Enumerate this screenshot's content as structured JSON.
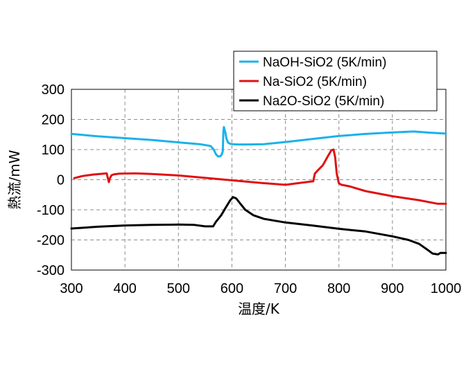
{
  "chart_data": {
    "type": "line",
    "title": "",
    "xlabel": "温度/K",
    "ylabel": "熱流/mW",
    "xlim": [
      300,
      1000
    ],
    "ylim": [
      -300,
      300
    ],
    "xticks": [
      300,
      400,
      500,
      600,
      700,
      800,
      900,
      1000
    ],
    "yticks": [
      -300,
      -200,
      -100,
      0,
      100,
      200,
      300
    ],
    "grid": true,
    "legend_position": "top-right",
    "series": [
      {
        "name": "NaOH-SiO2 (5K/min)",
        "color": "#1ab2e8",
        "x": [
          300,
          350,
          400,
          450,
          500,
          540,
          560,
          566,
          570,
          574,
          578,
          581,
          583,
          584,
          585,
          586,
          588,
          590,
          593,
          597,
          602,
          610,
          630,
          660,
          700,
          750,
          800,
          850,
          900,
          940,
          970,
          1000
        ],
        "y": [
          152,
          144,
          138,
          132,
          124,
          118,
          112,
          100,
          85,
          77,
          78,
          84,
          95,
          160,
          175,
          168,
          155,
          135,
          123,
          119,
          118,
          117,
          117,
          118,
          125,
          135,
          145,
          152,
          157,
          160,
          156,
          153
        ]
      },
      {
        "name": "Na-SiO2 (5K/min)",
        "color": "#e01010",
        "x": [
          305,
          320,
          340,
          366,
          368,
          370,
          372,
          375,
          380,
          390,
          420,
          450,
          500,
          550,
          600,
          650,
          700,
          730,
          752,
          755,
          760,
          770,
          780,
          786,
          790,
          793,
          796,
          800,
          805,
          820,
          850,
          900,
          950,
          985,
          1000
        ],
        "y": [
          5,
          12,
          17,
          21,
          5,
          -8,
          5,
          15,
          18,
          20,
          21,
          19,
          14,
          6,
          -2,
          -10,
          -17,
          -10,
          -5,
          20,
          30,
          48,
          80,
          98,
          100,
          75,
          20,
          -12,
          -17,
          -22,
          -38,
          -55,
          -68,
          -80,
          -80
        ]
      },
      {
        "name": "Na2O-SiO2 (5K/min)",
        "color": "#000000",
        "x": [
          300,
          350,
          400,
          450,
          500,
          530,
          550,
          565,
          570,
          580,
          590,
          597,
          602,
          608,
          615,
          625,
          640,
          660,
          700,
          750,
          800,
          850,
          900,
          930,
          950,
          965,
          975,
          985,
          990,
          1000
        ],
        "y": [
          -162,
          -156,
          -152,
          -150,
          -149,
          -150,
          -155,
          -155,
          -140,
          -118,
          -88,
          -68,
          -58,
          -62,
          -78,
          -100,
          -118,
          -130,
          -142,
          -152,
          -163,
          -172,
          -188,
          -200,
          -213,
          -232,
          -245,
          -248,
          -243,
          -243
        ]
      }
    ]
  }
}
